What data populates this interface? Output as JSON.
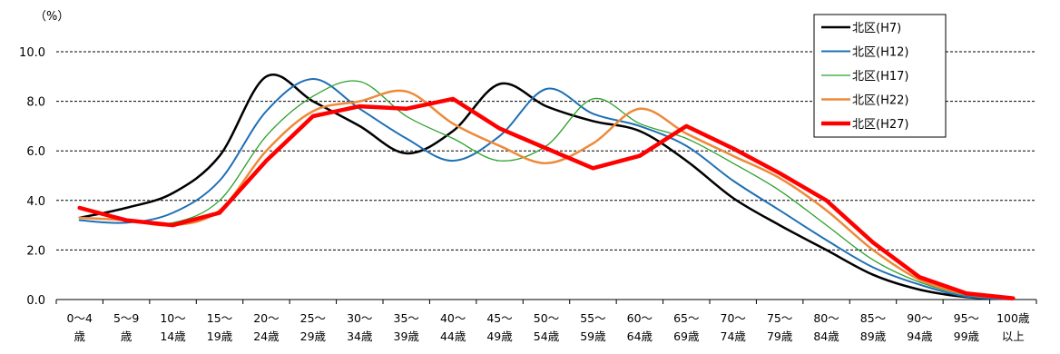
{
  "chart_data": {
    "type": "line",
    "unit_label": "（%）",
    "ylim": [
      0,
      10
    ],
    "yticks": [
      "0.0",
      "2.0",
      "4.0",
      "6.0",
      "8.0",
      "10.0"
    ],
    "ytick_values": [
      0,
      2,
      4,
      6,
      8,
      10
    ],
    "grid": true,
    "legend_position": "top-right",
    "categories": [
      [
        "0～4",
        "歳"
      ],
      [
        "5～9",
        "歳"
      ],
      [
        "10～",
        "14歳"
      ],
      [
        "15～",
        "19歳"
      ],
      [
        "20～",
        "24歳"
      ],
      [
        "25～",
        "29歳"
      ],
      [
        "30～",
        "34歳"
      ],
      [
        "35～",
        "39歳"
      ],
      [
        "40～",
        "44歳"
      ],
      [
        "45～",
        "49歳"
      ],
      [
        "50～",
        "54歳"
      ],
      [
        "55～",
        "59歳"
      ],
      [
        "60～",
        "64歳"
      ],
      [
        "65～",
        "69歳"
      ],
      [
        "70～",
        "74歳"
      ],
      [
        "75～",
        "79歳"
      ],
      [
        "80～",
        "84歳"
      ],
      [
        "85～",
        "89歳"
      ],
      [
        "90～",
        "94歳"
      ],
      [
        "95～",
        "99歳"
      ],
      [
        "100歳",
        "以上"
      ]
    ],
    "series": [
      {
        "name": "北区(H7)",
        "color": "#000000",
        "values": [
          3.3,
          3.7,
          4.3,
          5.8,
          9.0,
          8.0,
          7.0,
          5.9,
          6.8,
          8.7,
          7.8,
          7.2,
          6.8,
          5.6,
          4.1,
          3.0,
          2.0,
          1.0,
          0.4,
          0.1,
          0.02
        ]
      },
      {
        "name": "北区(H12)",
        "color": "#1f6fb5",
        "values": [
          3.2,
          3.1,
          3.5,
          4.8,
          7.6,
          8.9,
          7.7,
          6.5,
          5.6,
          6.6,
          8.5,
          7.5,
          7.0,
          6.2,
          4.8,
          3.6,
          2.4,
          1.3,
          0.6,
          0.12,
          0.02
        ]
      },
      {
        "name": "北区(H17)",
        "color": "#2ca02c",
        "values": [
          3.3,
          3.2,
          3.1,
          4.0,
          6.6,
          8.2,
          8.8,
          7.4,
          6.5,
          5.6,
          6.2,
          8.1,
          7.1,
          6.5,
          5.5,
          4.4,
          3.0,
          1.6,
          0.7,
          0.18,
          0.03
        ]
      },
      {
        "name": "北区(H22)",
        "color": "#ed8a3a",
        "values": [
          3.3,
          3.2,
          3.0,
          3.6,
          6.0,
          7.6,
          8.0,
          8.4,
          7.1,
          6.2,
          5.5,
          6.3,
          7.7,
          6.7,
          5.8,
          4.9,
          3.6,
          2.0,
          0.8,
          0.22,
          0.04
        ]
      },
      {
        "name": "北区(H27)",
        "color": "#ff0000",
        "values": [
          3.7,
          3.2,
          3.0,
          3.5,
          5.6,
          7.4,
          7.8,
          7.7,
          8.1,
          6.9,
          6.1,
          5.3,
          5.8,
          7.0,
          6.1,
          5.1,
          4.0,
          2.3,
          0.9,
          0.25,
          0.05
        ]
      }
    ]
  }
}
